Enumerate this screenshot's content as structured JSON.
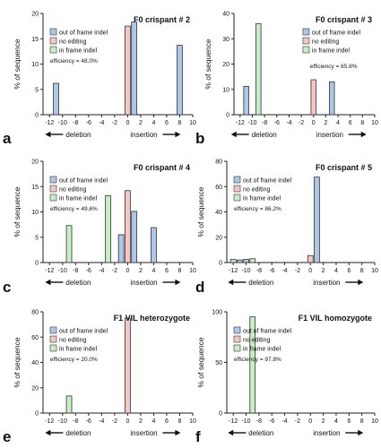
{
  "figure": {
    "legend_labels": [
      "out of frame indel",
      "no editing",
      "in frame indel"
    ],
    "colors": {
      "out_of_frame": "#aec6e8",
      "no_editing": "#f6c6c6",
      "in_frame": "#c7efc4",
      "outline": "#333333"
    }
  },
  "chart_data": [
    {
      "type": "bar",
      "panel_label": "a",
      "title": "F0 crispant # 2",
      "ylabel": "% of sequence",
      "xlabel_left": "deletion",
      "xlabel_right": "insertion",
      "xlim": [
        -13,
        10
      ],
      "ylim": [
        0,
        20
      ],
      "xticks": [
        -12,
        -10,
        -8,
        -6,
        -4,
        -2,
        0,
        2,
        4,
        6,
        8,
        10
      ],
      "yticks": [
        0,
        5,
        10,
        15,
        20
      ],
      "annotation": "efficiency = 48.0%",
      "bars": [
        {
          "x": -11,
          "value": 6.2,
          "category": "out_of_frame"
        },
        {
          "x": 0,
          "value": 17.5,
          "category": "no_editing"
        },
        {
          "x": 1,
          "value": 18.3,
          "category": "out_of_frame"
        },
        {
          "x": 8,
          "value": 13.7,
          "category": "out_of_frame"
        }
      ]
    },
    {
      "type": "bar",
      "panel_label": "b",
      "title": "F0 crispant # 3",
      "ylabel": "% of sequence",
      "xlabel_left": "deletion",
      "xlabel_right": "insertion",
      "xlim": [
        -13,
        10
      ],
      "ylim": [
        0,
        40
      ],
      "xticks": [
        -12,
        -10,
        -8,
        -6,
        -4,
        -2,
        0,
        2,
        4,
        6,
        8,
        10
      ],
      "yticks": [
        0,
        10,
        20,
        30,
        40
      ],
      "annotation": "efficiency = 65.8%",
      "bars": [
        {
          "x": -11,
          "value": 11.2,
          "category": "out_of_frame"
        },
        {
          "x": -9,
          "value": 36,
          "category": "in_frame"
        },
        {
          "x": 0,
          "value": 13.8,
          "category": "no_editing"
        },
        {
          "x": 3,
          "value": 13,
          "category": "out_of_frame"
        }
      ]
    },
    {
      "type": "bar",
      "panel_label": "c",
      "title": "F0 crispant # 4",
      "ylabel": "% of sequence",
      "xlabel_left": "deletion",
      "xlabel_right": "insertion",
      "xlim": [
        -13,
        10
      ],
      "ylim": [
        0,
        20
      ],
      "xticks": [
        -12,
        -10,
        -8,
        -6,
        -4,
        -2,
        0,
        2,
        4,
        6,
        8,
        10
      ],
      "yticks": [
        0,
        5,
        10,
        15,
        20
      ],
      "annotation": "efficiency = 49.6%",
      "bars": [
        {
          "x": -9,
          "value": 7.3,
          "category": "in_frame"
        },
        {
          "x": -3,
          "value": 13.2,
          "category": "in_frame"
        },
        {
          "x": -1,
          "value": 5.5,
          "category": "out_of_frame"
        },
        {
          "x": 0,
          "value": 14.2,
          "category": "no_editing"
        },
        {
          "x": 1,
          "value": 10.1,
          "category": "out_of_frame"
        },
        {
          "x": 4,
          "value": 6.9,
          "category": "out_of_frame"
        }
      ]
    },
    {
      "type": "bar",
      "panel_label": "d",
      "title": "F0 crispant # 5",
      "ylabel": "% of sequence",
      "xlabel_left": "deletion",
      "xlabel_right": "insertion",
      "xlim": [
        -13,
        10
      ],
      "ylim": [
        0,
        80
      ],
      "xticks": [
        -12,
        -10,
        -8,
        -6,
        -4,
        -2,
        0,
        2,
        4,
        6,
        8,
        10
      ],
      "yticks": [
        0,
        20,
        40,
        60,
        80
      ],
      "annotation": "efficiency = 86.2%",
      "bars": [
        {
          "x": -12,
          "value": 2.5,
          "category": "in_frame"
        },
        {
          "x": -11,
          "value": 2,
          "category": "out_of_frame"
        },
        {
          "x": -10,
          "value": 2.5,
          "category": "out_of_frame"
        },
        {
          "x": -9,
          "value": 3,
          "category": "in_frame"
        },
        {
          "x": 0,
          "value": 5.5,
          "category": "no_editing"
        },
        {
          "x": 1,
          "value": 67.5,
          "category": "out_of_frame"
        }
      ]
    },
    {
      "type": "bar",
      "panel_label": "e",
      "title": "F1 VIL heterozygote",
      "ylabel": "% of sequence",
      "xlabel_left": "deletion",
      "xlabel_right": "insertion",
      "xlim": [
        -13,
        10
      ],
      "ylim": [
        0,
        80
      ],
      "xticks": [
        -12,
        -10,
        -8,
        -6,
        -4,
        -2,
        0,
        2,
        4,
        6,
        8,
        10
      ],
      "yticks": [
        0,
        20,
        40,
        60,
        80
      ],
      "annotation": "efficiency = 20.0%",
      "bars": [
        {
          "x": -9,
          "value": 13.5,
          "category": "in_frame"
        },
        {
          "x": 0,
          "value": 75,
          "category": "no_editing"
        }
      ]
    },
    {
      "type": "bar",
      "panel_label": "f",
      "title": "F1 VIL homozygote",
      "ylabel": "% of sequence",
      "xlabel_left": "deletion",
      "xlabel_right": "insertion",
      "xlim": [
        -13,
        10
      ],
      "ylim": [
        0,
        100
      ],
      "xticks": [
        -12,
        -10,
        -8,
        -6,
        -4,
        -2,
        0,
        2,
        4,
        6,
        8,
        10
      ],
      "yticks": [
        0,
        50,
        100
      ],
      "annotation": "efficiency = 97.8%",
      "bars": [
        {
          "x": -9,
          "value": 95,
          "category": "in_frame"
        }
      ]
    }
  ]
}
